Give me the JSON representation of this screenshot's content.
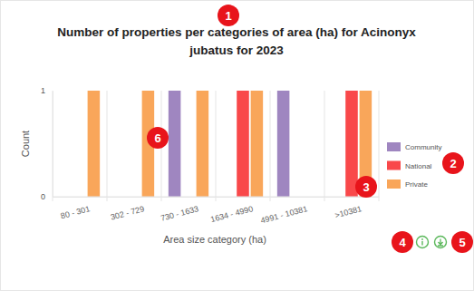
{
  "chart_data": {
    "type": "bar",
    "title": "Number of properties per categories of area (ha) for Acinonyx jubatus for 2023",
    "x_label": "Area size category (ha)",
    "y_label": "Count",
    "categories": [
      "80 - 301",
      "302 - 729",
      "730 - 1633",
      "1634 - 4990",
      "4991 - 10381",
      ">10381"
    ],
    "series": [
      {
        "name": "Community",
        "color": "#9f86c0",
        "values": [
          0,
          0,
          1,
          0,
          1,
          0
        ]
      },
      {
        "name": "National",
        "color": "#f9484a",
        "values": [
          0,
          0,
          0,
          1,
          0,
          1
        ]
      },
      {
        "name": "Private",
        "color": "#f9a65a",
        "values": [
          1,
          1,
          1,
          1,
          0,
          1
        ]
      }
    ],
    "ylim": [
      0,
      1
    ],
    "yticks": [
      0,
      1
    ],
    "grid": true,
    "legend": "right",
    "annotations": [
      "1",
      "2",
      "3",
      "4",
      "5",
      "6"
    ]
  }
}
